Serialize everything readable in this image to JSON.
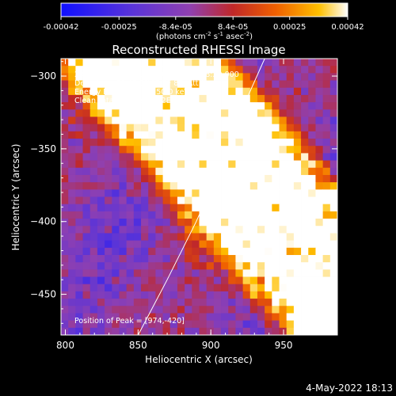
{
  "colorbar": {
    "ticks": [
      "-0.00042",
      "-0.00025",
      "-8.4e-05",
      "8.4e-05",
      "0.00025",
      "0.00042"
    ],
    "tick_values": [
      -0.00042,
      -0.00025,
      -8.4e-05,
      8.4e-05,
      0.00025,
      0.00042
    ],
    "range": [
      -0.00042,
      0.00042
    ],
    "unit_label": "(photons cm",
    "unit_sup1": "-2",
    "unit_mid": " s",
    "unit_sup2": "-1",
    "unit_end": " asec",
    "unit_sup3": "-2",
    "unit_close": ")",
    "colors": [
      "#1010ff",
      "#5a34d8",
      "#9040b0",
      "#c02828",
      "#f06000",
      "#ffc000",
      "#ffffff"
    ]
  },
  "chart_data": {
    "type": "heatmap",
    "title": "Reconstructed RHESSI Image",
    "xlabel": "Heliocentric X (arcsec)",
    "ylabel": "Heliocentric Y (arcsec)",
    "xlim": [
      797,
      987
    ],
    "ylim": [
      -478,
      -288
    ],
    "x_ticks": [
      800,
      850,
      900,
      950
    ],
    "y_ticks": [
      -300,
      -350,
      -400,
      -450
    ],
    "x_tick_labels": [
      "800",
      "850",
      "900",
      "950"
    ],
    "y_tick_labels": [
      "−300",
      "−350",
      "−400",
      "−450"
    ],
    "info": [
      "28-Dec-2002 22:15:24.000 to 22:18:20.000",
      "Detectors: 3F 4F 5F 6F 7F 8F, Att 0",
      "Energy Range: 25.0 - 50.0 keV",
      "Clean     Total Counts: 3.32E+03"
    ],
    "peak_label": "Position of Peak = [974,-420]",
    "peak": [
      974,
      -420
    ],
    "limb": [
      [
        850,
        -478
      ],
      [
        870,
        -440
      ],
      [
        890,
        -400
      ],
      [
        910,
        -355
      ],
      [
        925,
        -315
      ],
      [
        937,
        -288
      ]
    ],
    "grid": {
      "nx": 38,
      "ny": 38,
      "bands": [
        {
          "offset": -1.05,
          "width": 0.1,
          "amp": 0.85
        },
        {
          "offset": -0.72,
          "width": 0.12,
          "amp": 0.95
        },
        {
          "offset": -0.3,
          "width": 0.14,
          "amp": 1.0
        },
        {
          "offset": 0.05,
          "width": 0.13,
          "amp": 0.75
        }
      ]
    }
  },
  "footer": {
    "timestamp": "4-May-2022 18:13"
  }
}
